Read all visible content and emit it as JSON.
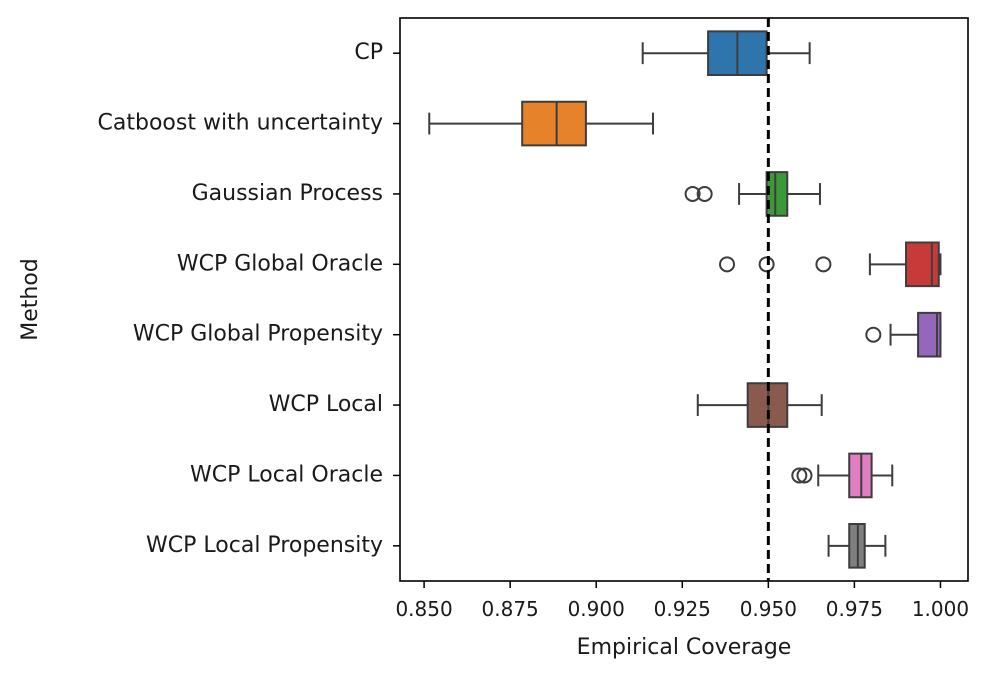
{
  "chart_data": {
    "type": "boxplot",
    "orientation": "horizontal",
    "xlabel": "Empirical Coverage",
    "ylabel": "Method",
    "xlim": [
      0.843,
      1.008
    ],
    "xticks": [
      0.85,
      0.875,
      0.9,
      0.925,
      0.95,
      0.975,
      1.0
    ],
    "xtick_labels": [
      "0.850",
      "0.875",
      "0.900",
      "0.925",
      "0.950",
      "0.975",
      "1.000"
    ],
    "reference_line": {
      "value": 0.95,
      "style": "dashed",
      "color": "#000000"
    },
    "grid": false,
    "series": [
      {
        "name": "CP",
        "color": "#2f75ad",
        "whisker_low": 0.9135,
        "q1": 0.9325,
        "median": 0.941,
        "q3": 0.9495,
        "whisker_high": 0.962,
        "outliers": []
      },
      {
        "name": "Catboost with uncertainty",
        "color": "#e6822a",
        "whisker_low": 0.8515,
        "q1": 0.8785,
        "median": 0.8885,
        "q3": 0.897,
        "whisker_high": 0.9165,
        "outliers": []
      },
      {
        "name": "Gaussian Process",
        "color": "#3a9a3a",
        "whisker_low": 0.9415,
        "q1": 0.9495,
        "median": 0.952,
        "q3": 0.9555,
        "whisker_high": 0.965,
        "outliers": [
          0.928,
          0.9315
        ]
      },
      {
        "name": "WCP Global Oracle",
        "color": "#c83a3a",
        "whisker_low": 0.9795,
        "q1": 0.99,
        "median": 0.9975,
        "q3": 0.9995,
        "whisker_high": 1.0,
        "outliers": [
          0.938,
          0.9495,
          0.966
        ]
      },
      {
        "name": "WCP Global Propensity",
        "color": "#9467bd",
        "whisker_low": 0.9855,
        "q1": 0.9935,
        "median": 0.999,
        "q3": 1.0,
        "whisker_high": 1.0,
        "outliers": [
          0.9805
        ]
      },
      {
        "name": "WCP Local",
        "color": "#8a5a4e",
        "whisker_low": 0.9295,
        "q1": 0.944,
        "median": 0.95,
        "q3": 0.9555,
        "whisker_high": 0.9655,
        "outliers": []
      },
      {
        "name": "WCP Local Oracle",
        "color": "#e07ec2",
        "whisker_low": 0.9645,
        "q1": 0.9735,
        "median": 0.977,
        "q3": 0.98,
        "whisker_high": 0.986,
        "outliers": [
          0.959,
          0.9605
        ]
      },
      {
        "name": "WCP Local Propensity",
        "color": "#7f7f7f",
        "whisker_low": 0.9675,
        "q1": 0.9735,
        "median": 0.976,
        "q3": 0.978,
        "whisker_high": 0.984,
        "outliers": []
      }
    ]
  }
}
